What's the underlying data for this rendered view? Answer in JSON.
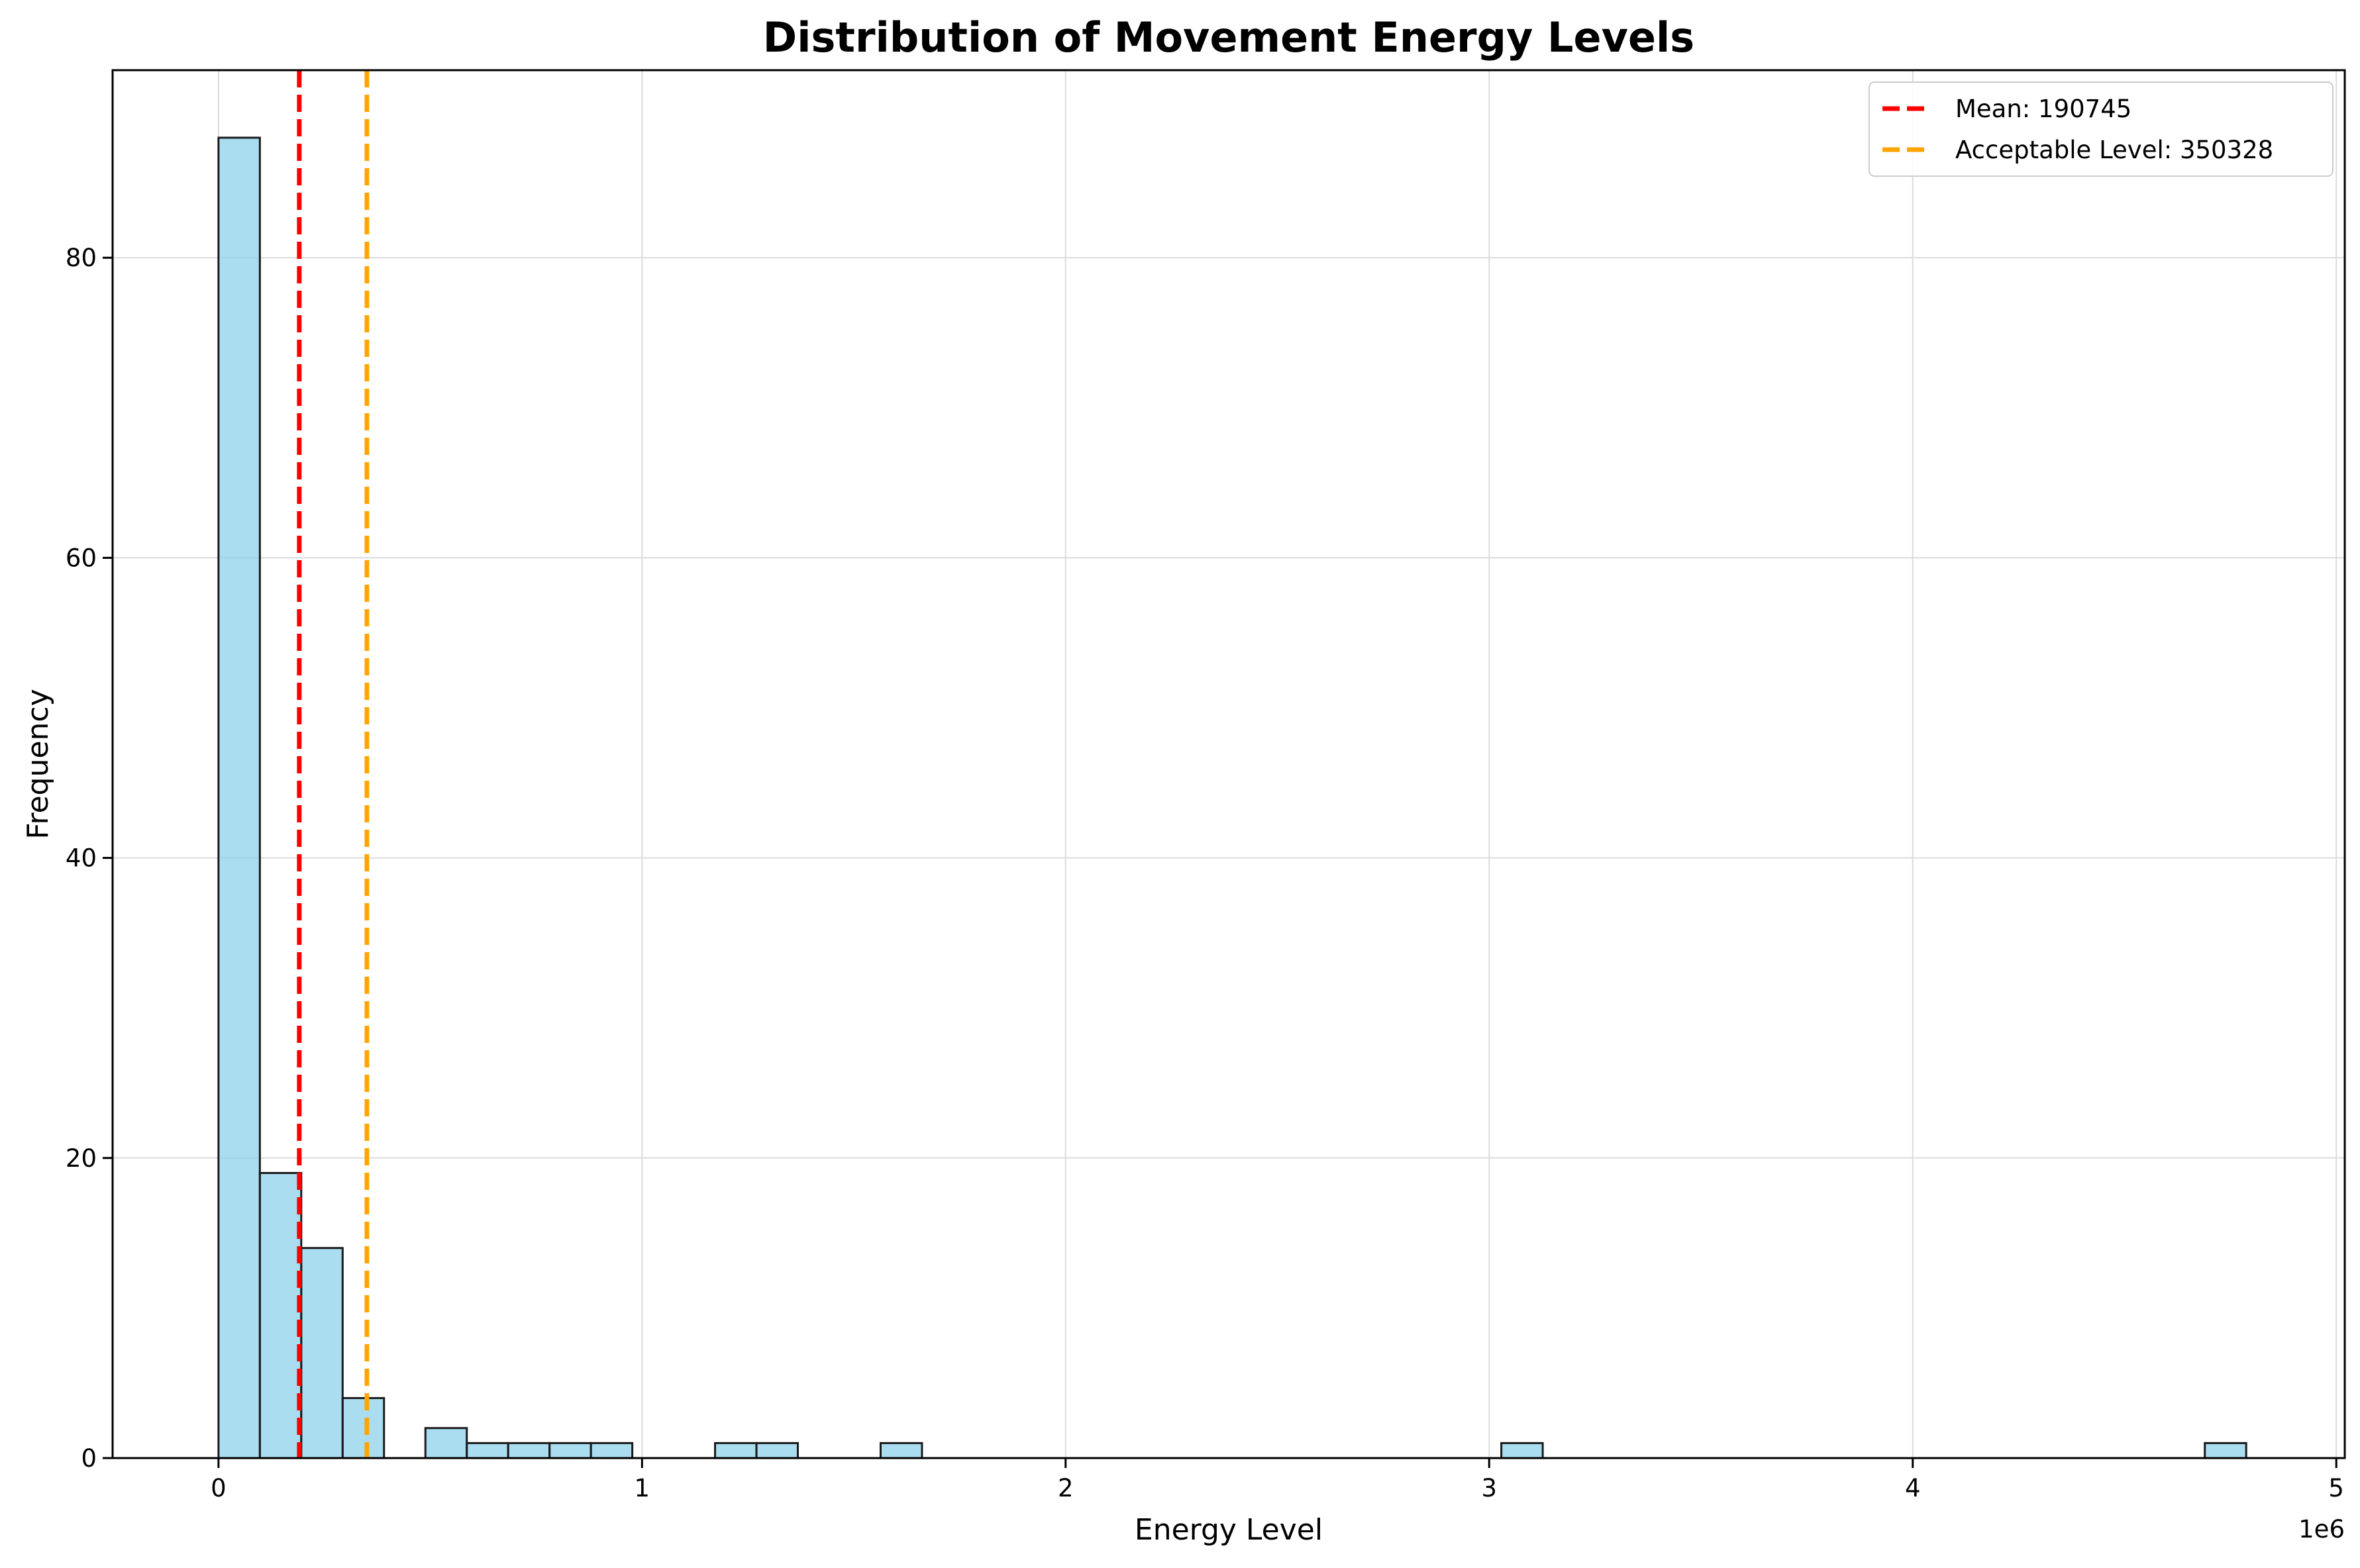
{
  "chart_data": {
    "type": "bar",
    "subtype": "histogram",
    "title": "Distribution of Movement Energy Levels",
    "xlabel": "Energy Level",
    "ylabel": "Frequency",
    "x_offset_text": "1e6",
    "xlim": [
      -0.25,
      5.02
    ],
    "ylim": [
      0,
      92.5
    ],
    "x_unit_scale": 1000000,
    "xticks": [
      0,
      1,
      2,
      3,
      4,
      5
    ],
    "yticks": [
      0,
      20,
      40,
      60,
      80
    ],
    "grid": true,
    "legend_position": "top-right",
    "bar_color": "#87CEEB",
    "bar_edge_color": "#1a1a1a",
    "bin_width": 0.0977,
    "bins": [
      {
        "start": 0.0,
        "count": 88
      },
      {
        "start": 0.0977,
        "count": 19
      },
      {
        "start": 0.1954,
        "count": 14
      },
      {
        "start": 0.2931,
        "count": 4
      },
      {
        "start": 0.4885,
        "count": 2
      },
      {
        "start": 0.5862,
        "count": 1
      },
      {
        "start": 0.6839,
        "count": 1
      },
      {
        "start": 0.7816,
        "count": 1
      },
      {
        "start": 0.8793,
        "count": 1
      },
      {
        "start": 1.1724,
        "count": 1
      },
      {
        "start": 1.2701,
        "count": 1
      },
      {
        "start": 1.5632,
        "count": 1
      },
      {
        "start": 3.0287,
        "count": 1
      },
      {
        "start": 4.6896,
        "count": 1
      }
    ],
    "reference_lines": [
      {
        "label": "Mean: 190745",
        "value": 190745,
        "color": "#ff0000"
      },
      {
        "label": "Acceptable Level: 350328",
        "value": 350328,
        "color": "#ffa500"
      }
    ]
  }
}
